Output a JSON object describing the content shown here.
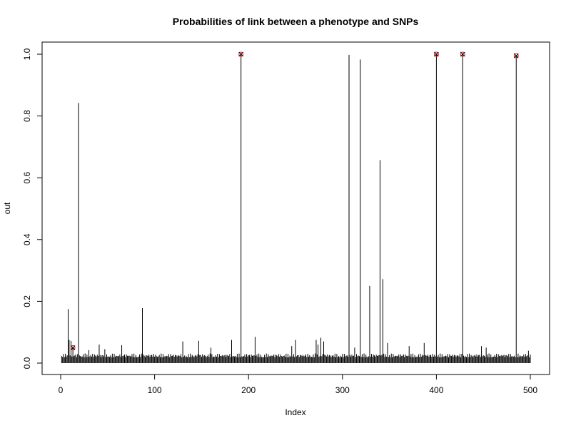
{
  "chart_data": {
    "type": "bar",
    "title": "Probabilities of link between a phenotype and SNPs",
    "xlabel": "Index",
    "ylabel": "out",
    "xlim": [
      0,
      500
    ],
    "ylim": [
      0,
      1.0
    ],
    "x_ticks": [
      0,
      100,
      200,
      300,
      400,
      500
    ],
    "y_ticks": [
      0.0,
      0.2,
      0.4,
      0.6,
      0.8,
      1.0
    ],
    "x_tick_labels": [
      "0",
      "100",
      "200",
      "300",
      "400",
      "500"
    ],
    "y_tick_labels": [
      "0.0",
      "0.2",
      "0.4",
      "0.6",
      "0.8",
      "1.0"
    ],
    "grid": false,
    "n_points": 500,
    "baseline_value": 0.025,
    "spikes": [
      {
        "x": 8,
        "y": 0.175
      },
      {
        "x": 9,
        "y": 0.075
      },
      {
        "x": 11,
        "y": 0.072
      },
      {
        "x": 13,
        "y": 0.05
      },
      {
        "x": 19,
        "y": 0.842
      },
      {
        "x": 30,
        "y": 0.042
      },
      {
        "x": 41,
        "y": 0.06
      },
      {
        "x": 47,
        "y": 0.045
      },
      {
        "x": 65,
        "y": 0.058
      },
      {
        "x": 87,
        "y": 0.178
      },
      {
        "x": 130,
        "y": 0.07
      },
      {
        "x": 147,
        "y": 0.072
      },
      {
        "x": 160,
        "y": 0.05
      },
      {
        "x": 182,
        "y": 0.075
      },
      {
        "x": 192,
        "y": 1.0
      },
      {
        "x": 207,
        "y": 0.085
      },
      {
        "x": 246,
        "y": 0.055
      },
      {
        "x": 250,
        "y": 0.075
      },
      {
        "x": 272,
        "y": 0.075
      },
      {
        "x": 274,
        "y": 0.06
      },
      {
        "x": 277,
        "y": 0.082
      },
      {
        "x": 280,
        "y": 0.07
      },
      {
        "x": 307,
        "y": 0.998
      },
      {
        "x": 313,
        "y": 0.05
      },
      {
        "x": 319,
        "y": 0.983
      },
      {
        "x": 329,
        "y": 0.25
      },
      {
        "x": 340,
        "y": 0.657
      },
      {
        "x": 343,
        "y": 0.272
      },
      {
        "x": 348,
        "y": 0.065
      },
      {
        "x": 371,
        "y": 0.055
      },
      {
        "x": 387,
        "y": 0.065
      },
      {
        "x": 400,
        "y": 1.0
      },
      {
        "x": 428,
        "y": 1.0
      },
      {
        "x": 448,
        "y": 0.055
      },
      {
        "x": 453,
        "y": 0.05
      },
      {
        "x": 485,
        "y": 0.995
      },
      {
        "x": 498,
        "y": 0.04
      }
    ],
    "highlighted_points": [
      {
        "x": 13,
        "y": 0.05
      },
      {
        "x": 192,
        "y": 1.0
      },
      {
        "x": 400,
        "y": 1.0
      },
      {
        "x": 428,
        "y": 1.0
      },
      {
        "x": 485,
        "y": 0.995
      }
    ],
    "colors": {
      "bars": "#000000",
      "highlight": "#d62728",
      "axis": "#000000"
    }
  }
}
